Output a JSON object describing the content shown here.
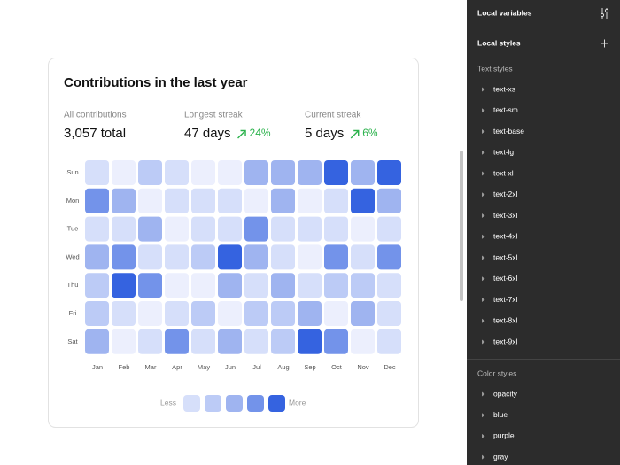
{
  "card": {
    "title": "Contributions in the last year",
    "stats": [
      {
        "label": "All contributions",
        "value": "3,057 total"
      },
      {
        "label": "Longest streak",
        "value": "47 days",
        "change": "24%"
      },
      {
        "label": "Current streak",
        "value": "5 days",
        "change": "6%"
      }
    ],
    "heatmap": {
      "days": [
        "Sun",
        "Mon",
        "Tue",
        "Wed",
        "Thu",
        "Fri",
        "Sat"
      ],
      "months": [
        "Jan",
        "Feb",
        "Mar",
        "Apr",
        "May",
        "Jun",
        "Jul",
        "Aug",
        "Sep",
        "Oct",
        "Nov",
        "Dec"
      ],
      "palette": [
        "#eceffd",
        "#d6dffa",
        "#bccbf6",
        "#9fb4f0",
        "#7393ea",
        "#3563e0"
      ],
      "levels": [
        [
          1,
          0,
          2,
          1,
          0,
          0,
          3,
          3,
          3,
          5,
          3,
          5
        ],
        [
          4,
          3,
          0,
          1,
          1,
          1,
          0,
          3,
          0,
          1,
          5,
          3
        ],
        [
          1,
          1,
          3,
          0,
          1,
          1,
          4,
          1,
          1,
          1,
          0,
          1
        ],
        [
          3,
          4,
          1,
          1,
          2,
          5,
          3,
          1,
          0,
          4,
          1,
          4
        ],
        [
          2,
          5,
          4,
          0,
          0,
          3,
          1,
          3,
          1,
          2,
          2,
          1
        ],
        [
          2,
          1,
          0,
          1,
          2,
          0,
          2,
          2,
          3,
          0,
          3,
          1
        ],
        [
          3,
          0,
          1,
          4,
          1,
          3,
          1,
          2,
          5,
          4,
          0,
          1
        ]
      ]
    },
    "legend": {
      "less": "Less",
      "more": "More",
      "levels": [
        1,
        2,
        3,
        4,
        5
      ]
    }
  },
  "panel": {
    "variables_title": "Local variables",
    "styles_title": "Local styles",
    "text_styles_title": "Text styles",
    "text_styles": [
      "text-xs",
      "text-sm",
      "text-base",
      "text-lg",
      "text-xl",
      "text-2xl",
      "text-3xl",
      "text-4xl",
      "text-5xl",
      "text-6xl",
      "text-7xl",
      "text-8xl",
      "text-9xl"
    ],
    "color_styles_title": "Color styles",
    "color_styles": [
      "opacity",
      "blue",
      "purple",
      "gray"
    ]
  }
}
